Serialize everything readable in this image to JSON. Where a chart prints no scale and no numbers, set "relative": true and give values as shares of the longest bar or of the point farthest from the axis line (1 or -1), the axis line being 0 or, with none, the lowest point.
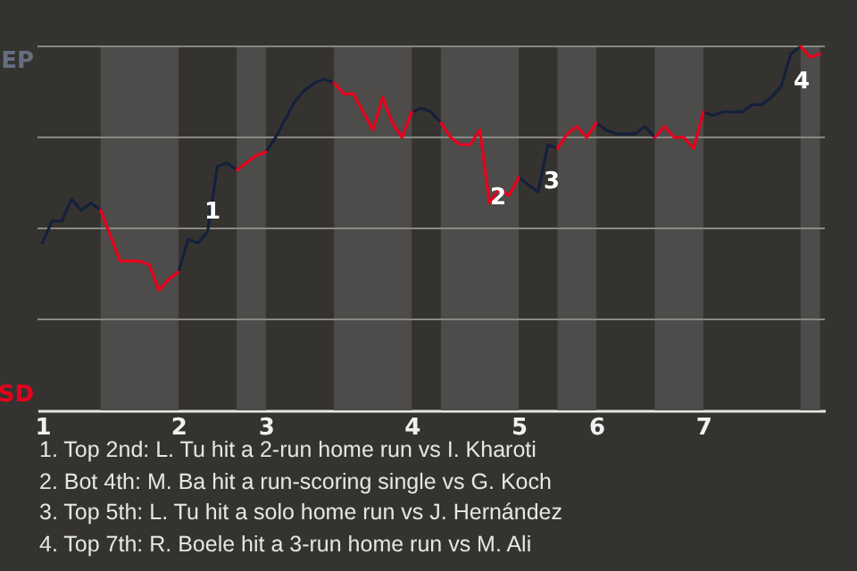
{
  "chart_data": {
    "type": "line",
    "relative": true,
    "categories": [
      "1",
      null,
      null,
      null,
      null,
      null,
      null,
      null,
      null,
      null,
      null,
      null,
      null,
      null,
      "2",
      null,
      null,
      null,
      null,
      null,
      null,
      null,
      null,
      "3",
      null,
      null,
      null,
      null,
      null,
      null,
      null,
      null,
      null,
      null,
      null,
      null,
      null,
      null,
      "4",
      null,
      null,
      null,
      null,
      null,
      null,
      null,
      null,
      null,
      null,
      "5",
      null,
      null,
      null,
      null,
      null,
      null,
      null,
      "6",
      null,
      null,
      null,
      null,
      null,
      null,
      null,
      null,
      null,
      null,
      "7",
      null,
      null,
      null,
      null,
      null,
      null,
      null,
      null,
      null,
      null,
      null,
      null
    ],
    "series": [
      {
        "color": "#14203c",
        "values": [
          0.46,
          0.52,
          0.52,
          0.58,
          0.55,
          0.57,
          0.55,
          null,
          null,
          null,
          null,
          null,
          null,
          null,
          0.38,
          0.47,
          0.46,
          0.49,
          0.67,
          0.68,
          0.66,
          null,
          null,
          0.71,
          0.75,
          0.8,
          0.85,
          0.88,
          0.9,
          0.91,
          0.9,
          null,
          null,
          null,
          null,
          null,
          null,
          null,
          0.82,
          0.83,
          0.82,
          0.79,
          null,
          null,
          null,
          null,
          null,
          null,
          null,
          0.64,
          0.62,
          0.6,
          0.73,
          0.72,
          null,
          null,
          null,
          0.79,
          0.77,
          0.76,
          0.76,
          0.76,
          0.78,
          0.75,
          null,
          null,
          null,
          null,
          0.82,
          0.81,
          0.82,
          0.82,
          0.82,
          0.84,
          0.84,
          0.86,
          0.89,
          0.98,
          1.0,
          null,
          null
        ]
      },
      {
        "color": "#e8001c",
        "values": [
          null,
          null,
          null,
          null,
          null,
          null,
          0.55,
          0.48,
          0.41,
          0.41,
          0.41,
          0.4,
          0.33,
          0.36,
          0.38,
          null,
          null,
          null,
          null,
          null,
          0.66,
          0.68,
          0.7,
          0.71,
          null,
          null,
          null,
          null,
          null,
          null,
          0.9,
          0.87,
          0.87,
          0.82,
          0.77,
          0.86,
          0.79,
          0.75,
          0.82,
          null,
          null,
          0.79,
          0.75,
          0.73,
          0.73,
          0.77,
          0.57,
          0.61,
          0.59,
          0.64,
          null,
          null,
          null,
          0.72,
          0.76,
          0.78,
          0.75,
          0.79,
          null,
          null,
          null,
          null,
          null,
          0.75,
          0.78,
          0.75,
          0.75,
          0.72,
          0.82,
          null,
          null,
          null,
          null,
          null,
          null,
          null,
          null,
          null,
          1.0,
          0.97,
          0.98
        ]
      }
    ],
    "ref_lines": [
      {
        "axis": "y",
        "value": 0.25,
        "color": "#8a8885"
      },
      {
        "axis": "y",
        "value": 0.5,
        "color": "#8a8885"
      },
      {
        "axis": "y",
        "value": 0.75,
        "color": "#8a8885"
      },
      {
        "axis": "y",
        "value": 1,
        "color": "#8a8885"
      }
    ],
    "annotations": [
      "EP",
      "SD",
      "1",
      "2",
      "3",
      "4",
      "1. Top 2nd: L. Tu hit a 2-run home run vs I. Kharoti",
      "2. Bot 4th: M. Ba hit a run-scoring single vs G. Koch",
      "3. Top 5th: L. Tu hit a solo home run vs J. Hernández",
      "4. Top 7th: R. Boele hit a 3-run home run vs M. Ali"
    ]
  }
}
